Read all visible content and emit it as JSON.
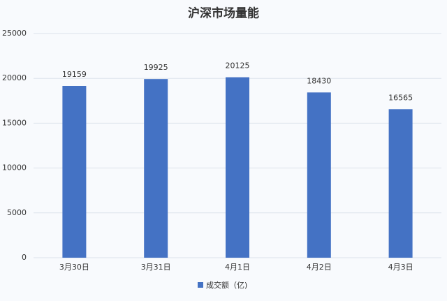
{
  "chart_data": {
    "type": "bar",
    "title": "沪深市场量能",
    "categories": [
      "3月30日",
      "3月31日",
      "4月1日",
      "4月2日",
      "4月3日"
    ],
    "series": [
      {
        "name": "成交额（亿)",
        "color": "#4472c4",
        "values": [
          19159,
          19925,
          20125,
          18430,
          16565
        ]
      }
    ],
    "ylim": [
      0,
      25000
    ],
    "yticks": [
      0,
      5000,
      10000,
      15000,
      20000,
      25000
    ],
    "grid": true,
    "legend": "bottom"
  }
}
